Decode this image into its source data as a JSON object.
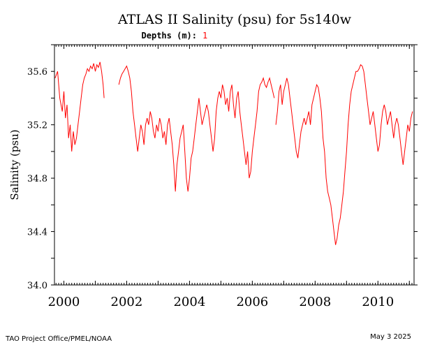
{
  "chart_data": {
    "type": "line",
    "title": "ATLAS II Salinity (psu) for 5s140w",
    "subtitle_label": "Depths (m):",
    "subtitle_value": "1",
    "ylabel": "Salinity (psu)",
    "xlabel": "",
    "xlim": [
      1999.7,
      2011.15
    ],
    "ylim": [
      34.0,
      35.8
    ],
    "grid": false,
    "y_ticks": [
      "34.0",
      "34.4",
      "34.8",
      "35.2",
      "35.6"
    ],
    "x_ticks": [
      "2000",
      "2002",
      "2004",
      "2006",
      "2008",
      "2010"
    ],
    "series": [
      {
        "color": "#ff0000",
        "segments": [
          {
            "x": [
              1999.72,
              1999.8,
              1999.87,
              1999.95,
              2000.0,
              2000.05,
              2000.1,
              2000.15,
              2000.2,
              2000.25,
              2000.3,
              2000.35,
              2000.4,
              2000.45,
              2000.5,
              2000.55,
              2000.6,
              2000.65,
              2000.7,
              2000.75,
              2000.8,
              2000.85,
              2000.9,
              2000.95,
              2001.0,
              2001.05,
              2001.1,
              2001.15,
              2001.2,
              2001.25,
              2001.28
            ],
            "y": [
              35.55,
              35.6,
              35.4,
              35.3,
              35.45,
              35.25,
              35.35,
              35.1,
              35.2,
              35.0,
              35.15,
              35.05,
              35.1,
              35.2,
              35.3,
              35.4,
              35.5,
              35.55,
              35.58,
              35.62,
              35.6,
              35.64,
              35.62,
              35.66,
              35.6,
              35.65,
              35.63,
              35.67,
              35.6,
              35.5,
              35.4
            ]
          },
          {
            "x": [
              2001.75,
              2001.8,
              2001.85,
              2001.9,
              2001.95,
              2002.0,
              2002.05,
              2002.1,
              2002.15,
              2002.2,
              2002.25,
              2002.3,
              2002.35,
              2002.4,
              2002.45,
              2002.5,
              2002.55,
              2002.6,
              2002.65,
              2002.7,
              2002.75,
              2002.8,
              2002.85,
              2002.9,
              2002.95,
              2003.0,
              2003.05,
              2003.1,
              2003.15,
              2003.2,
              2003.25,
              2003.3,
              2003.35,
              2003.4,
              2003.45,
              2003.5,
              2003.55,
              2003.6,
              2003.65,
              2003.7,
              2003.75,
              2003.8,
              2003.85,
              2003.9,
              2003.95,
              2004.0,
              2004.05,
              2004.1,
              2004.15,
              2004.2,
              2004.25,
              2004.3,
              2004.35,
              2004.4,
              2004.45,
              2004.5,
              2004.55,
              2004.6,
              2004.65,
              2004.7,
              2004.75,
              2004.8,
              2004.85,
              2004.9,
              2004.95,
              2005.0,
              2005.05,
              2005.1,
              2005.15,
              2005.2,
              2005.25,
              2005.3,
              2005.35,
              2005.4,
              2005.45,
              2005.5,
              2005.55,
              2005.6,
              2005.65,
              2005.7,
              2005.75,
              2005.8,
              2005.85,
              2005.9,
              2005.95,
              2006.0,
              2006.05,
              2006.1,
              2006.15,
              2006.2,
              2006.25,
              2006.3,
              2006.35,
              2006.4,
              2006.45,
              2006.5,
              2006.55,
              2006.6,
              2006.65,
              2006.7
            ],
            "y": [
              35.5,
              35.55,
              35.58,
              35.6,
              35.62,
              35.64,
              35.6,
              35.55,
              35.45,
              35.3,
              35.2,
              35.1,
              35.0,
              35.1,
              35.2,
              35.15,
              35.05,
              35.2,
              35.25,
              35.2,
              35.3,
              35.25,
              35.15,
              35.1,
              35.2,
              35.15,
              35.25,
              35.2,
              35.1,
              35.15,
              35.05,
              35.2,
              35.25,
              35.15,
              35.05,
              34.9,
              34.7,
              34.9,
              35.0,
              35.1,
              35.15,
              35.2,
              35.0,
              34.8,
              34.7,
              34.8,
              34.95,
              35.0,
              35.1,
              35.2,
              35.3,
              35.4,
              35.3,
              35.2,
              35.25,
              35.3,
              35.35,
              35.3,
              35.2,
              35.1,
              35.0,
              35.1,
              35.3,
              35.4,
              35.45,
              35.4,
              35.5,
              35.45,
              35.35,
              35.4,
              35.3,
              35.45,
              35.5,
              35.35,
              35.25,
              35.4,
              35.45,
              35.3,
              35.2,
              35.1,
              35.0,
              34.9,
              35.0,
              34.8,
              34.85,
              35.0,
              35.1,
              35.2,
              35.3,
              35.45,
              35.5,
              35.52,
              35.55,
              35.5,
              35.48,
              35.52,
              35.55,
              35.5,
              35.45,
              35.4
            ]
          },
          {
            "x": [
              2006.75,
              2006.8,
              2006.85,
              2006.9,
              2006.95,
              2007.0,
              2007.05,
              2007.1,
              2007.15,
              2007.2,
              2007.25,
              2007.3,
              2007.35,
              2007.4,
              2007.45,
              2007.5,
              2007.55,
              2007.6,
              2007.65,
              2007.7,
              2007.75,
              2007.8,
              2007.85,
              2007.9,
              2007.95,
              2008.0,
              2008.05,
              2008.1,
              2008.15,
              2008.2,
              2008.25,
              2008.3,
              2008.35,
              2008.4,
              2008.45,
              2008.5,
              2008.55,
              2008.6,
              2008.65,
              2008.7,
              2008.75,
              2008.8,
              2008.85,
              2008.9,
              2008.95,
              2009.0,
              2009.05,
              2009.1,
              2009.15,
              2009.2,
              2009.25,
              2009.3,
              2009.35,
              2009.4,
              2009.45,
              2009.5,
              2009.55,
              2009.6,
              2009.65,
              2009.7,
              2009.75,
              2009.8,
              2009.85,
              2009.9,
              2009.95,
              2010.0,
              2010.05,
              2010.1,
              2010.15,
              2010.2,
              2010.25,
              2010.3,
              2010.35,
              2010.4,
              2010.45,
              2010.5,
              2010.55,
              2010.6,
              2010.65,
              2010.7,
              2010.75,
              2010.8,
              2010.85,
              2010.9,
              2010.95,
              2011.0,
              2011.05,
              2011.1
            ],
            "y": [
              35.2,
              35.3,
              35.45,
              35.5,
              35.35,
              35.45,
              35.5,
              35.55,
              35.5,
              35.4,
              35.3,
              35.2,
              35.1,
              35.0,
              34.95,
              35.05,
              35.15,
              35.2,
              35.25,
              35.2,
              35.25,
              35.3,
              35.2,
              35.35,
              35.4,
              35.45,
              35.5,
              35.48,
              35.4,
              35.3,
              35.1,
              35.0,
              34.8,
              34.7,
              34.65,
              34.6,
              34.5,
              34.4,
              34.3,
              34.35,
              34.45,
              34.5,
              34.6,
              34.7,
              34.85,
              35.0,
              35.2,
              35.35,
              35.45,
              35.5,
              35.55,
              35.6,
              35.6,
              35.62,
              35.65,
              35.64,
              35.6,
              35.5,
              35.4,
              35.3,
              35.2,
              35.25,
              35.3,
              35.2,
              35.1,
              35.0,
              35.05,
              35.2,
              35.3,
              35.35,
              35.3,
              35.2,
              35.25,
              35.3,
              35.2,
              35.1,
              35.2,
              35.25,
              35.2,
              35.1,
              35.0,
              34.9,
              35.0,
              35.1,
              35.2,
              35.15,
              35.25,
              35.3
            ]
          }
        ]
      }
    ]
  },
  "footer": {
    "left": "TAO Project Office/PMEL/NOAA",
    "right": "May  3 2025"
  }
}
